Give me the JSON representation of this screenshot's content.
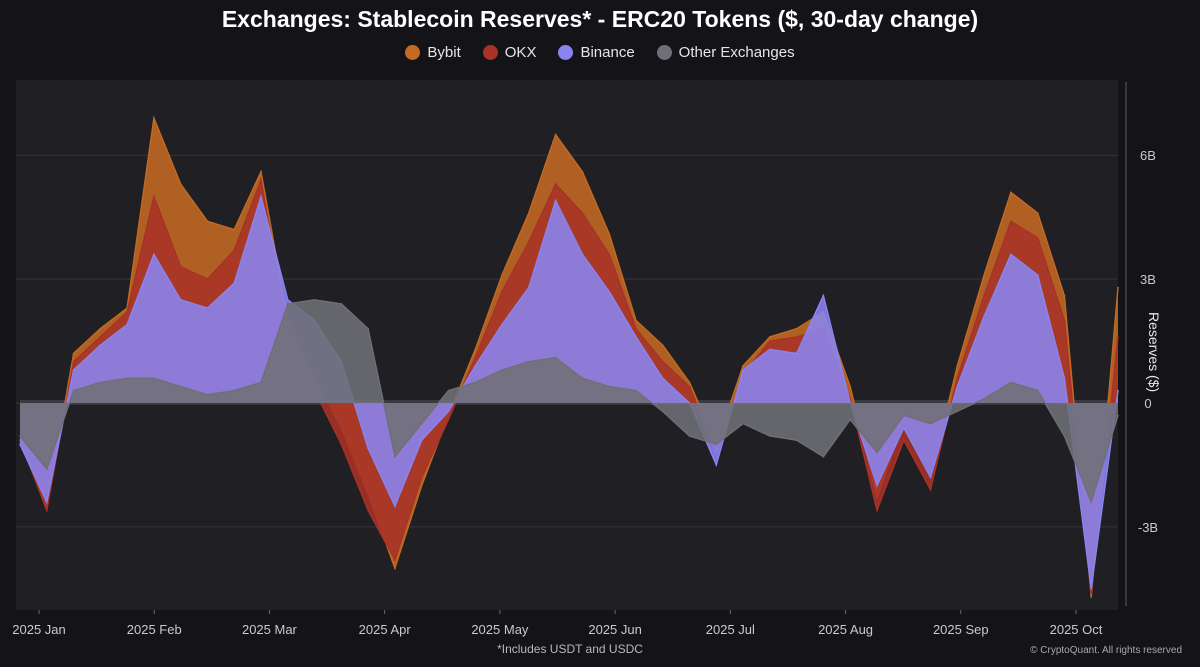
{
  "title": "Exchanges: Stablecoin Reserves* - ERC20 Tokens ($, 30-day change)",
  "legend": [
    {
      "label": "Bybit",
      "color": "#c46a22"
    },
    {
      "label": "OKX",
      "color": "#a83228"
    },
    {
      "label": "Binance",
      "color": "#8a84f0"
    },
    {
      "label": "Other Exchanges",
      "color": "#6f6f76"
    }
  ],
  "footnote": "*Includes USDT and USDC",
  "credit": "© CryptoQuant. All rights reserved",
  "chart_data": {
    "type": "area",
    "title": "Exchanges: Stablecoin Reserves* - ERC20 Tokens ($, 30-day change)",
    "xlabel": "",
    "ylabel": "Reserves ($)",
    "y_ticks": [
      {
        "v": 6,
        "label": "6B"
      },
      {
        "v": 3,
        "label": "3B"
      },
      {
        "v": 0,
        "label": "0"
      },
      {
        "v": -3,
        "label": "-3B"
      }
    ],
    "ylim": [
      -5.1,
      7.8
    ],
    "x_ticks": [
      "2025 Jan",
      "2025 Feb",
      "2025 Mar",
      "2025 Apr",
      "2025 May",
      "2025 Jun",
      "2025 Jul",
      "2025 Aug",
      "2025 Sep",
      "2025 Oct"
    ],
    "x": [
      0,
      7,
      14,
      21,
      28,
      35,
      42,
      49,
      56,
      63,
      70,
      77,
      84,
      91,
      98,
      105,
      112,
      119,
      126,
      133,
      140,
      147,
      154,
      161,
      168,
      175,
      182,
      189,
      196,
      203,
      210,
      217,
      224,
      231,
      238,
      245,
      252,
      259,
      266,
      273,
      280,
      287
    ],
    "series": [
      {
        "name": "Bybit",
        "color": "#c46a22",
        "values": [
          -0.9,
          -2.5,
          1.2,
          1.8,
          2.3,
          6.9,
          5.3,
          4.4,
          4.2,
          5.6,
          2.0,
          0.6,
          -0.6,
          -2.2,
          -4.0,
          -2.0,
          -0.3,
          1.3,
          3.1,
          4.6,
          6.5,
          5.6,
          4.1,
          2.0,
          1.4,
          0.5,
          -1.0,
          0.9,
          1.6,
          1.8,
          2.2,
          0.4,
          -2.3,
          -0.4,
          -1.8,
          0.9,
          3.1,
          5.1,
          4.6,
          2.6,
          -4.7,
          2.8
        ]
      },
      {
        "name": "OKX",
        "color": "#a83228",
        "values": [
          -0.9,
          -2.6,
          1.0,
          1.6,
          2.2,
          5.0,
          3.3,
          3.0,
          3.7,
          5.4,
          1.8,
          0.3,
          -1.0,
          -2.6,
          -3.8,
          -1.8,
          -0.4,
          1.1,
          2.7,
          3.9,
          5.3,
          4.6,
          3.6,
          1.8,
          1.0,
          0.4,
          -1.2,
          0.7,
          1.5,
          1.6,
          1.8,
          0.1,
          -2.6,
          -0.9,
          -2.1,
          0.6,
          2.6,
          4.4,
          4.0,
          2.0,
          -4.6,
          1.6
        ]
      },
      {
        "name": "Binance",
        "color": "#8a84f0",
        "values": [
          -1.0,
          -2.4,
          0.8,
          1.4,
          1.9,
          3.6,
          2.5,
          2.3,
          2.9,
          5.0,
          2.5,
          2.0,
          1.0,
          -1.1,
          -2.5,
          -0.9,
          -0.2,
          0.9,
          1.9,
          2.8,
          4.9,
          3.6,
          2.7,
          1.6,
          0.6,
          0.0,
          -1.5,
          0.8,
          1.3,
          1.2,
          2.6,
          0.0,
          -2.0,
          -0.6,
          -1.8,
          0.4,
          2.1,
          3.6,
          3.1,
          0.6,
          -4.5,
          0.3
        ]
      },
      {
        "name": "Other Exchanges",
        "color": "#6f6f76",
        "values": [
          -0.8,
          -1.6,
          0.3,
          0.5,
          0.6,
          0.6,
          0.4,
          0.2,
          0.3,
          0.5,
          2.4,
          2.5,
          2.4,
          1.8,
          -1.3,
          -0.5,
          0.3,
          0.5,
          0.8,
          1.0,
          1.1,
          0.6,
          0.4,
          0.3,
          -0.2,
          -0.8,
          -1.0,
          -0.5,
          -0.8,
          -0.9,
          -1.3,
          -0.4,
          -1.2,
          -0.3,
          -0.5,
          -0.2,
          0.1,
          0.5,
          0.3,
          -0.8,
          -2.4,
          -0.3
        ]
      }
    ]
  }
}
